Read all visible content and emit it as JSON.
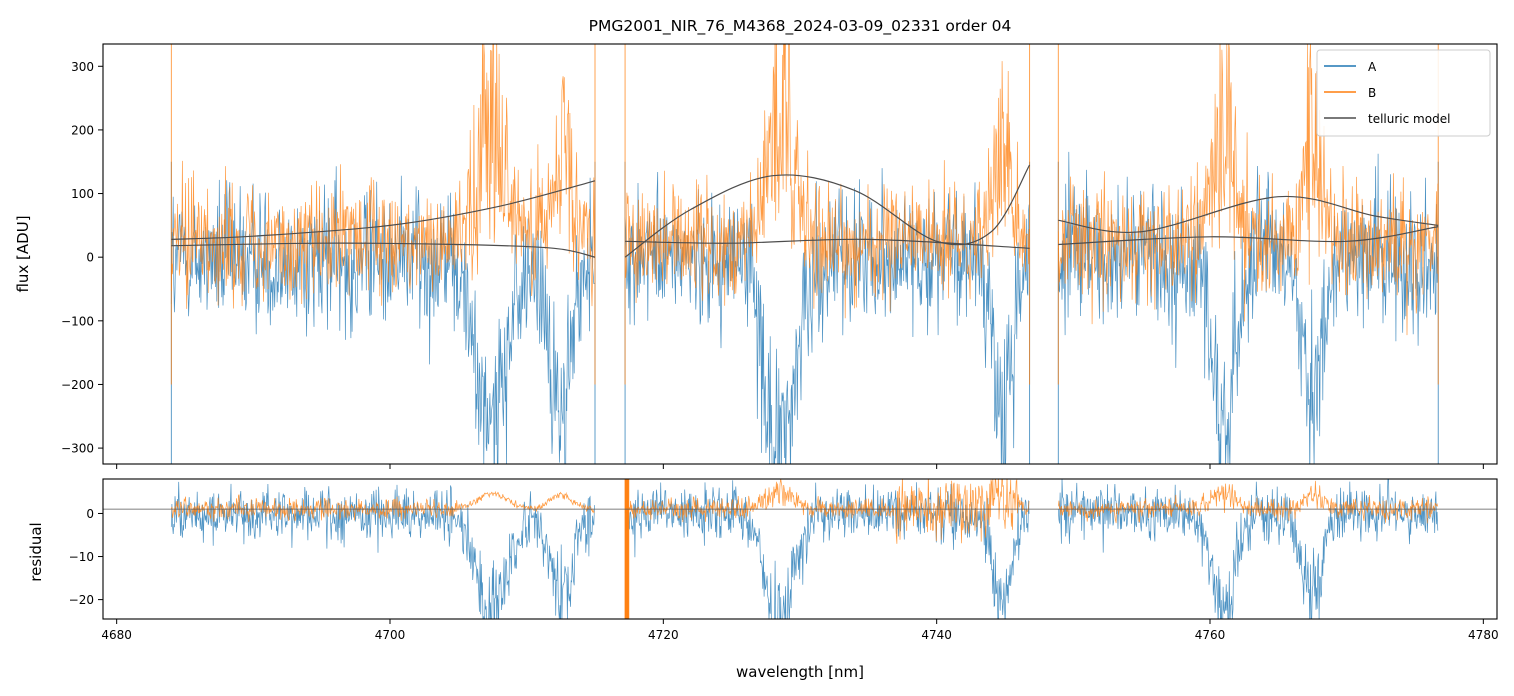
{
  "chart_data": [
    {
      "type": "line",
      "panel": "top",
      "title": "PMG2001_NIR_76_M4368_2024-03-09_02331  order 04",
      "xlabel": "",
      "ylabel": "flux [ADU]",
      "xlim": [
        4679,
        4781
      ],
      "ylim": [
        -325,
        335
      ],
      "xticks": [
        4680,
        4700,
        4720,
        4740,
        4760,
        4780
      ],
      "yticks": [
        -300,
        -200,
        -100,
        0,
        100,
        200,
        300
      ],
      "ytick_labels": [
        "−300",
        "−200",
        "−100",
        "0",
        "100",
        "200",
        "300"
      ],
      "legend": {
        "placement": "top-right",
        "entries": [
          "A",
          "B",
          "telluric model"
        ]
      },
      "segments": [
        [
          4684.0,
          4715.0
        ],
        [
          4717.2,
          4746.8
        ],
        [
          4748.9,
          4776.7
        ]
      ],
      "series": [
        {
          "name": "A",
          "color": "#1f77b4",
          "noise": 55,
          "offset": 0
        },
        {
          "name": "B",
          "color": "#ff7f0e",
          "noise": 45,
          "offset": 25
        },
        {
          "name": "telluric model",
          "color": "#4d4d4d",
          "curves": [
            {
              "segment": 0,
              "x": [
                4684,
                4690,
                4700,
                4708,
                4715
              ],
              "y": [
                28,
                33,
                50,
                80,
                120
              ]
            },
            {
              "segment": 0,
              "x": [
                4684,
                4695,
                4705,
                4712,
                4715
              ],
              "y": [
                18,
                22,
                20,
                14,
                0
              ]
            },
            {
              "segment": 1,
              "x": [
                4717.2,
                4722,
                4728,
                4734,
                4740,
                4744,
                4746.8
              ],
              "y": [
                0,
                75,
                128,
                105,
                25,
                40,
                145
              ]
            },
            {
              "segment": 1,
              "x": [
                4717.2,
                4725,
                4735,
                4746.8
              ],
              "y": [
                25,
                22,
                28,
                14
              ]
            },
            {
              "segment": 2,
              "x": [
                4748.9,
                4755,
                4765,
                4772,
                4776.7
              ],
              "y": [
                58,
                40,
                95,
                65,
                50
              ]
            },
            {
              "segment": 2,
              "x": [
                4748.9,
                4760,
                4770,
                4776.7
              ],
              "y": [
                20,
                32,
                25,
                48
              ]
            }
          ]
        }
      ],
      "absorption_bands": [
        {
          "center": 4707.5,
          "width": 1.6,
          "depth": 300
        },
        {
          "center": 4712.5,
          "width": 1.2,
          "depth": 260
        },
        {
          "center": 4728.5,
          "width": 1.5,
          "depth": 340
        },
        {
          "center": 4744.8,
          "width": 1.0,
          "depth": 260
        },
        {
          "center": 4761.0,
          "width": 1.2,
          "depth": 300
        },
        {
          "center": 4767.5,
          "width": 1.0,
          "depth": 260
        }
      ]
    },
    {
      "type": "line",
      "panel": "bottom",
      "xlabel": "wavelength [nm]",
      "ylabel": "residual",
      "xlim": [
        4679,
        4781
      ],
      "ylim": [
        -24.5,
        8
      ],
      "xticks": [
        4680,
        4700,
        4720,
        4740,
        4760,
        4780
      ],
      "xtick_labels": [
        "4680",
        "4700",
        "4720",
        "4740",
        "4760",
        "4780"
      ],
      "yticks": [
        -20,
        -10,
        0
      ],
      "ytick_labels": [
        "−20",
        "−10",
        "0"
      ],
      "reference_line": 1,
      "series": [
        {
          "name": "A",
          "color": "#1f77b4",
          "noise": 3.2
        },
        {
          "name": "B",
          "color": "#ff7f0e",
          "noise": 1.2
        }
      ]
    }
  ]
}
